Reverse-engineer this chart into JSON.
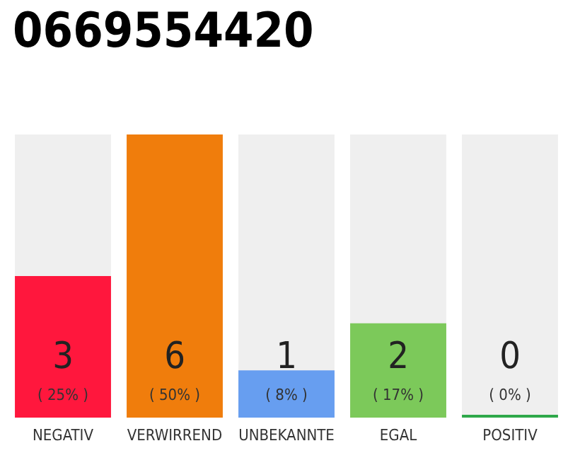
{
  "chart_data": {
    "type": "bar",
    "title": "0669554420",
    "categories": [
      "NEGATIV",
      "VERWIRREND",
      "UNBEKANNTE",
      "EGAL",
      "POSITIV"
    ],
    "values": [
      3,
      6,
      1,
      2,
      0
    ],
    "colors": [
      "#ff173d",
      "#f07d0c",
      "#679ef0",
      "#7cc95a",
      "#2ea84a"
    ],
    "data_labels": true,
    "annotations": [
      "( 25% )",
      "( 50% )",
      "( 8% )",
      "( 17% )",
      "( 0% )"
    ],
    "grid": false
  }
}
